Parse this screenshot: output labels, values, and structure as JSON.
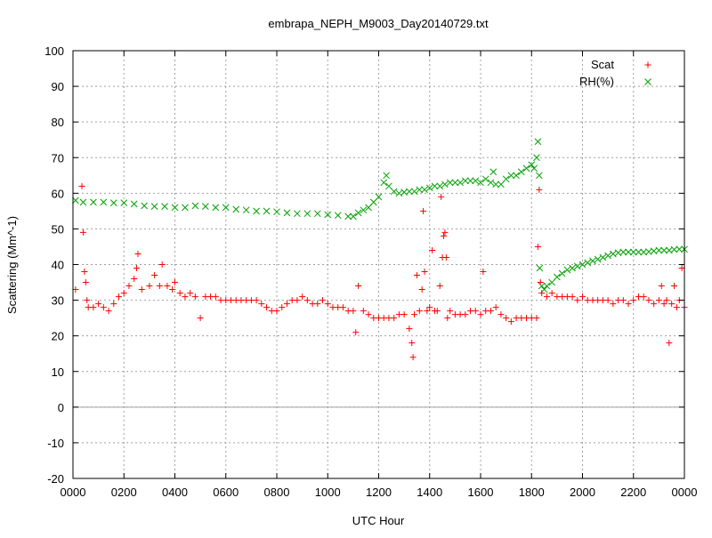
{
  "chart_data": {
    "type": "scatter",
    "title": "embrapa_NEPH_M9003_Day20140729.txt",
    "xlabel": "UTC Hour",
    "ylabel": "Scattering (Mm^-1)",
    "xlim": [
      0,
      24
    ],
    "ylim": [
      -20,
      100
    ],
    "x_ticks": [
      {
        "value": 0,
        "label": "0000"
      },
      {
        "value": 2,
        "label": "0200"
      },
      {
        "value": 4,
        "label": "0400"
      },
      {
        "value": 6,
        "label": "0600"
      },
      {
        "value": 8,
        "label": "0800"
      },
      {
        "value": 10,
        "label": "1000"
      },
      {
        "value": 12,
        "label": "1200"
      },
      {
        "value": 14,
        "label": "1400"
      },
      {
        "value": 16,
        "label": "1600"
      },
      {
        "value": 18,
        "label": "1800"
      },
      {
        "value": 20,
        "label": "2000"
      },
      {
        "value": 22,
        "label": "2200"
      },
      {
        "value": 24,
        "label": "0000"
      }
    ],
    "y_ticks": [
      -20,
      -10,
      0,
      10,
      20,
      30,
      40,
      50,
      60,
      70,
      80,
      90,
      100
    ],
    "grid": true,
    "legend_position": "top-right",
    "zero_line": true,
    "series": [
      {
        "name": "Scat",
        "marker": "+",
        "color": "#ff0000",
        "points": [
          [
            0.1,
            33
          ],
          [
            0.35,
            62
          ],
          [
            0.4,
            49
          ],
          [
            0.45,
            38
          ],
          [
            0.5,
            35
          ],
          [
            0.55,
            30
          ],
          [
            0.6,
            28
          ],
          [
            0.8,
            28
          ],
          [
            1.0,
            29
          ],
          [
            1.2,
            28
          ],
          [
            1.4,
            27
          ],
          [
            1.6,
            29
          ],
          [
            1.8,
            31
          ],
          [
            2.0,
            32
          ],
          [
            2.2,
            34
          ],
          [
            2.4,
            36
          ],
          [
            2.5,
            39
          ],
          [
            2.55,
            43
          ],
          [
            2.7,
            33
          ],
          [
            3.0,
            34
          ],
          [
            3.2,
            37
          ],
          [
            3.4,
            34
          ],
          [
            3.5,
            40
          ],
          [
            3.7,
            34
          ],
          [
            3.9,
            33
          ],
          [
            4.0,
            35
          ],
          [
            4.2,
            32
          ],
          [
            4.4,
            31
          ],
          [
            4.6,
            32
          ],
          [
            4.8,
            31
          ],
          [
            5.0,
            25
          ],
          [
            5.2,
            31
          ],
          [
            5.4,
            31
          ],
          [
            5.6,
            31
          ],
          [
            5.8,
            30
          ],
          [
            6.0,
            30
          ],
          [
            6.2,
            30
          ],
          [
            6.4,
            30
          ],
          [
            6.6,
            30
          ],
          [
            6.8,
            30
          ],
          [
            7.0,
            30
          ],
          [
            7.2,
            30
          ],
          [
            7.4,
            29
          ],
          [
            7.6,
            28
          ],
          [
            7.8,
            27
          ],
          [
            8.0,
            27
          ],
          [
            8.2,
            28
          ],
          [
            8.4,
            29
          ],
          [
            8.6,
            30
          ],
          [
            8.8,
            30
          ],
          [
            9.0,
            31
          ],
          [
            9.2,
            30
          ],
          [
            9.4,
            29
          ],
          [
            9.6,
            29
          ],
          [
            9.8,
            30
          ],
          [
            10.0,
            29
          ],
          [
            10.2,
            28
          ],
          [
            10.4,
            28
          ],
          [
            10.6,
            28
          ],
          [
            10.8,
            27
          ],
          [
            11.0,
            27
          ],
          [
            11.1,
            21
          ],
          [
            11.2,
            34
          ],
          [
            11.4,
            27
          ],
          [
            11.6,
            26
          ],
          [
            11.8,
            25
          ],
          [
            12.0,
            25
          ],
          [
            12.2,
            25
          ],
          [
            12.4,
            25
          ],
          [
            12.6,
            25
          ],
          [
            12.8,
            26
          ],
          [
            13.0,
            26
          ],
          [
            13.2,
            22
          ],
          [
            13.3,
            18
          ],
          [
            13.35,
            14
          ],
          [
            13.4,
            26
          ],
          [
            13.5,
            37
          ],
          [
            13.6,
            27
          ],
          [
            13.7,
            33
          ],
          [
            13.75,
            55
          ],
          [
            13.8,
            38
          ],
          [
            13.9,
            27
          ],
          [
            14.0,
            28
          ],
          [
            14.1,
            44
          ],
          [
            14.2,
            27
          ],
          [
            14.3,
            27
          ],
          [
            14.4,
            34
          ],
          [
            14.45,
            59
          ],
          [
            14.5,
            42
          ],
          [
            14.55,
            48
          ],
          [
            14.6,
            49
          ],
          [
            14.65,
            42
          ],
          [
            14.7,
            25
          ],
          [
            14.8,
            27
          ],
          [
            15.0,
            26
          ],
          [
            15.2,
            26
          ],
          [
            15.4,
            26
          ],
          [
            15.6,
            27
          ],
          [
            15.8,
            27
          ],
          [
            16.0,
            26
          ],
          [
            16.1,
            38
          ],
          [
            16.2,
            27
          ],
          [
            16.4,
            27
          ],
          [
            16.6,
            28
          ],
          [
            16.8,
            26
          ],
          [
            17.0,
            25
          ],
          [
            17.2,
            24
          ],
          [
            17.4,
            25
          ],
          [
            17.6,
            25
          ],
          [
            17.8,
            25
          ],
          [
            18.0,
            25
          ],
          [
            18.2,
            25
          ],
          [
            18.25,
            45
          ],
          [
            18.3,
            61
          ],
          [
            18.35,
            35
          ],
          [
            18.4,
            32
          ],
          [
            18.6,
            31
          ],
          [
            18.8,
            32
          ],
          [
            19.0,
            31
          ],
          [
            19.2,
            31
          ],
          [
            19.4,
            31
          ],
          [
            19.6,
            31
          ],
          [
            19.8,
            30
          ],
          [
            20.0,
            31
          ],
          [
            20.2,
            30
          ],
          [
            20.4,
            30
          ],
          [
            20.6,
            30
          ],
          [
            20.8,
            30
          ],
          [
            21.0,
            30
          ],
          [
            21.2,
            29
          ],
          [
            21.4,
            30
          ],
          [
            21.6,
            30
          ],
          [
            21.8,
            29
          ],
          [
            22.0,
            30
          ],
          [
            22.2,
            31
          ],
          [
            22.4,
            31
          ],
          [
            22.6,
            30
          ],
          [
            22.8,
            29
          ],
          [
            23.0,
            30
          ],
          [
            23.1,
            34
          ],
          [
            23.2,
            29
          ],
          [
            23.3,
            30
          ],
          [
            23.4,
            18
          ],
          [
            23.5,
            29
          ],
          [
            23.6,
            34
          ],
          [
            23.7,
            28
          ],
          [
            23.8,
            30
          ],
          [
            23.9,
            39
          ],
          [
            24.0,
            28
          ]
        ]
      },
      {
        "name": "RH(%)",
        "marker": "x",
        "color": "#00a000",
        "points": [
          [
            0.1,
            58
          ],
          [
            0.4,
            57.5
          ],
          [
            0.8,
            57.5
          ],
          [
            1.2,
            57.5
          ],
          [
            1.6,
            57.3
          ],
          [
            2.0,
            57.3
          ],
          [
            2.4,
            57
          ],
          [
            2.8,
            56.5
          ],
          [
            3.2,
            56.3
          ],
          [
            3.6,
            56.3
          ],
          [
            4.0,
            56
          ],
          [
            4.4,
            56
          ],
          [
            4.8,
            56.5
          ],
          [
            5.2,
            56.3
          ],
          [
            5.6,
            56
          ],
          [
            6.0,
            56
          ],
          [
            6.4,
            55.5
          ],
          [
            6.8,
            55.3
          ],
          [
            7.2,
            55
          ],
          [
            7.6,
            55
          ],
          [
            8.0,
            54.8
          ],
          [
            8.4,
            54.5
          ],
          [
            8.8,
            54.3
          ],
          [
            9.2,
            54.3
          ],
          [
            9.6,
            54.3
          ],
          [
            10.0,
            54
          ],
          [
            10.4,
            53.8
          ],
          [
            10.8,
            53.5
          ],
          [
            11.0,
            53.5
          ],
          [
            11.2,
            54.5
          ],
          [
            11.4,
            55.3
          ],
          [
            11.6,
            56
          ],
          [
            11.8,
            57.5
          ],
          [
            12.0,
            59
          ],
          [
            12.2,
            63
          ],
          [
            12.3,
            65
          ],
          [
            12.4,
            62
          ],
          [
            12.6,
            60.5
          ],
          [
            12.8,
            60
          ],
          [
            13.0,
            60.3
          ],
          [
            13.2,
            60.5
          ],
          [
            13.4,
            60.5
          ],
          [
            13.6,
            61
          ],
          [
            13.8,
            61
          ],
          [
            14.0,
            61.5
          ],
          [
            14.2,
            62
          ],
          [
            14.4,
            62
          ],
          [
            14.6,
            62.5
          ],
          [
            14.8,
            63
          ],
          [
            15.0,
            63
          ],
          [
            15.2,
            63
          ],
          [
            15.4,
            63.5
          ],
          [
            15.6,
            63.5
          ],
          [
            15.8,
            63.5
          ],
          [
            16.0,
            63
          ],
          [
            16.2,
            64
          ],
          [
            16.4,
            63
          ],
          [
            16.5,
            66
          ],
          [
            16.6,
            62.5
          ],
          [
            16.8,
            62.5
          ],
          [
            17.0,
            64
          ],
          [
            17.2,
            65
          ],
          [
            17.4,
            65
          ],
          [
            17.6,
            66
          ],
          [
            17.8,
            67
          ],
          [
            18.0,
            68
          ],
          [
            18.1,
            67
          ],
          [
            18.2,
            70
          ],
          [
            18.25,
            74.5
          ],
          [
            18.3,
            65
          ],
          [
            18.32,
            39
          ],
          [
            18.4,
            34
          ],
          [
            18.5,
            33
          ],
          [
            18.6,
            34
          ],
          [
            18.8,
            35
          ],
          [
            19.0,
            36.5
          ],
          [
            19.2,
            37.5
          ],
          [
            19.4,
            38.5
          ],
          [
            19.6,
            39
          ],
          [
            19.8,
            39.5
          ],
          [
            20.0,
            40
          ],
          [
            20.2,
            40.5
          ],
          [
            20.4,
            41
          ],
          [
            20.6,
            41.5
          ],
          [
            20.8,
            42
          ],
          [
            21.0,
            42.5
          ],
          [
            21.2,
            43
          ],
          [
            21.4,
            43.3
          ],
          [
            21.6,
            43.5
          ],
          [
            21.8,
            43.5
          ],
          [
            22.0,
            43.5
          ],
          [
            22.2,
            43.5
          ],
          [
            22.4,
            43.5
          ],
          [
            22.6,
            43.6
          ],
          [
            22.8,
            43.8
          ],
          [
            23.0,
            44
          ],
          [
            23.2,
            44
          ],
          [
            23.4,
            44
          ],
          [
            23.6,
            44.2
          ],
          [
            23.8,
            44.3
          ],
          [
            24.0,
            44.3
          ]
        ]
      }
    ]
  }
}
